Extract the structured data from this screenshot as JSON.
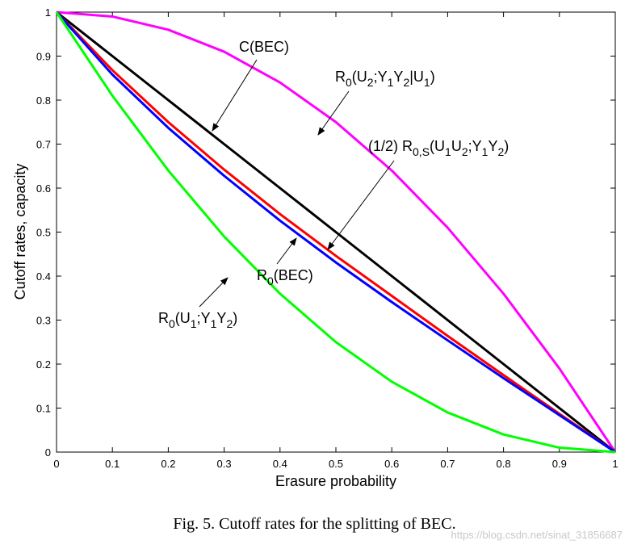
{
  "chart_data": {
    "type": "line",
    "xlabel": "Erasure probability",
    "ylabel": "Cutoff rates, capacity",
    "xlim": [
      0,
      1
    ],
    "ylim": [
      0,
      1
    ],
    "xticks": [
      "0",
      "0.1",
      "0.2",
      "0.3",
      "0.4",
      "0.5",
      "0.6",
      "0.7",
      "0.8",
      "0.9",
      "1"
    ],
    "yticks": [
      "0",
      "0.1",
      "0.2",
      "0.3",
      "0.4",
      "0.5",
      "0.6",
      "0.7",
      "0.8",
      "0.9",
      "1"
    ],
    "grid": false,
    "x": [
      0,
      0.1,
      0.2,
      0.3,
      0.4,
      0.5,
      0.6,
      0.7,
      0.8,
      0.9,
      1
    ],
    "series": [
      {
        "color": "#ff00ff",
        "values": [
          1.0,
          0.99,
          0.96,
          0.91,
          0.84,
          0.75,
          0.64,
          0.51,
          0.36,
          0.19,
          0.0
        ]
      },
      {
        "color": "#000000",
        "values": [
          1.0,
          0.9,
          0.8,
          0.7,
          0.6,
          0.5,
          0.4,
          0.3,
          0.2,
          0.1,
          0.0
        ]
      },
      {
        "color": "#ff0000",
        "values": [
          1.0,
          0.868,
          0.75,
          0.642,
          0.541,
          0.446,
          0.355,
          0.264,
          0.175,
          0.087,
          0.0
        ]
      },
      {
        "color": "#0000ff",
        "values": [
          1.0,
          0.858,
          0.737,
          0.628,
          0.526,
          0.431,
          0.341,
          0.254,
          0.168,
          0.084,
          0.0
        ]
      },
      {
        "color": "#00ff00",
        "values": [
          1.0,
          0.81,
          0.64,
          0.49,
          0.36,
          0.25,
          0.16,
          0.09,
          0.04,
          0.01,
          0.0
        ]
      }
    ],
    "annotations": [
      {
        "text": "C(BEC)",
        "series": 1
      },
      {
        "text": "R0(U2;Y1Y2|U1)",
        "series": 0
      },
      {
        "text": "(1/2) R0,S(U1U2;Y1Y2)",
        "series": 2
      },
      {
        "text": "R0(BEC)",
        "series": 3
      },
      {
        "text": "R0(U1;Y1Y2)",
        "series": 4
      }
    ]
  },
  "labels": {
    "c_bec": "C(BEC)",
    "r0_main": "R",
    "r0_sub": "0",
    "paren_open": "(",
    "u": "U",
    "y": "Y",
    "sub1": "1",
    "sub2": "2",
    "semicolon": ";",
    "bar": "|",
    "paren_close": ")",
    "half": "(1/2) R",
    "sub_0s": "0,S",
    "bec_suffix": "(BEC)"
  },
  "caption": "Fig. 5.   Cutoff rates for the splitting of BEC.",
  "watermark": "https://blog.csdn.net/sinat_31856687"
}
